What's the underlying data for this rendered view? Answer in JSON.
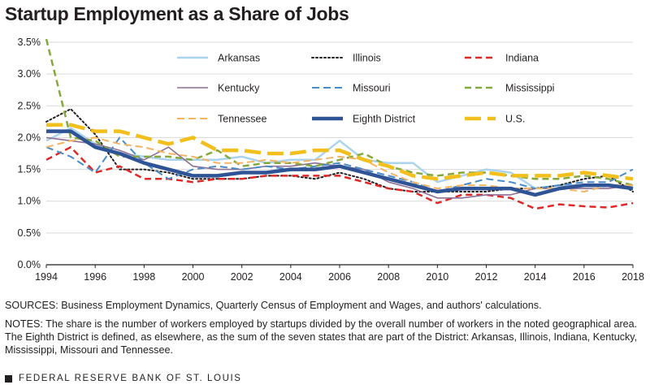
{
  "title": "Startup Employment as a Share of Jobs",
  "sources": "SOURCES: Business Employment Dynamics, Quarterly Census of Employment and Wages, and authors' calculations.",
  "notes": "NOTES: The share is the number of workers employed by startups divided by the overall number of workers in the noted geographical area. The Eighth District is defined, as elsewhere, as the sum of the seven states that are part of the District: Arkansas, Illinois, Indiana, Kentucky, Mississippi, Missouri and Tennessee.",
  "footer": "FEDERAL RESERVE BANK OF ST. LOUIS",
  "chart_data": {
    "type": "line",
    "title": "Startup Employment as a Share of Jobs",
    "xlabel": "",
    "ylabel": "",
    "xlim": [
      1994,
      2018
    ],
    "ylim": [
      0,
      3.5
    ],
    "x_ticks": [
      1994,
      1996,
      1998,
      2000,
      2002,
      2004,
      2006,
      2008,
      2010,
      2012,
      2014,
      2016,
      2018
    ],
    "y_ticks": [
      0,
      0.5,
      1.0,
      1.5,
      2.0,
      2.5,
      3.0,
      3.5
    ],
    "y_tick_labels": [
      "0.0%",
      "0.5%",
      "1.0%",
      "1.5%",
      "2.0%",
      "2.5%",
      "3.0%",
      "3.5%"
    ],
    "grid": "horizontal",
    "legend_position": "top",
    "x": [
      1994,
      1995,
      1996,
      1997,
      1998,
      1999,
      2000,
      2001,
      2002,
      2003,
      2004,
      2005,
      2006,
      2007,
      2008,
      2009,
      2010,
      2011,
      2012,
      2013,
      2014,
      2015,
      2016,
      2017,
      2018
    ],
    "series": [
      {
        "name": "Arkansas",
        "color": "#a9d3ef",
        "style": "solid",
        "width": 2.5,
        "values": [
          1.95,
          2.15,
          1.9,
          1.75,
          1.7,
          1.65,
          1.65,
          1.65,
          1.7,
          1.6,
          1.65,
          1.65,
          1.95,
          1.65,
          1.6,
          1.6,
          1.3,
          1.4,
          1.5,
          1.45,
          1.2,
          1.25,
          1.25,
          1.25,
          1.25
        ]
      },
      {
        "name": "Illinois",
        "color": "#231f20",
        "style": "dotted",
        "width": 2,
        "values": [
          2.25,
          2.45,
          2.05,
          1.5,
          1.5,
          1.45,
          1.35,
          1.35,
          1.35,
          1.4,
          1.4,
          1.35,
          1.45,
          1.35,
          1.2,
          1.15,
          1.15,
          1.15,
          1.15,
          1.2,
          1.2,
          1.25,
          1.35,
          1.4,
          1.15
        ]
      },
      {
        "name": "Indiana",
        "color": "#e02826",
        "style": "dashed",
        "width": 2.5,
        "values": [
          1.65,
          1.85,
          1.45,
          1.55,
          1.35,
          1.35,
          1.3,
          1.35,
          1.35,
          1.4,
          1.4,
          1.4,
          1.4,
          1.3,
          1.2,
          1.15,
          0.97,
          1.1,
          1.1,
          1.05,
          0.88,
          0.95,
          0.92,
          0.9,
          0.97
        ]
      },
      {
        "name": "Kentucky",
        "color": "#8e6f95",
        "style": "solid",
        "width": 1.6,
        "values": [
          2.0,
          1.95,
          1.9,
          1.8,
          1.65,
          1.85,
          1.55,
          1.5,
          1.5,
          1.55,
          1.55,
          1.6,
          1.55,
          1.5,
          1.3,
          1.2,
          1.05,
          1.05,
          1.1,
          1.1,
          1.2,
          1.2,
          1.2,
          1.2,
          1.25
        ]
      },
      {
        "name": "Missouri",
        "color": "#4a8cc7",
        "style": "dashed",
        "width": 2,
        "values": [
          1.85,
          1.7,
          1.45,
          2.0,
          1.6,
          1.35,
          1.5,
          1.55,
          1.5,
          1.55,
          1.5,
          1.55,
          1.6,
          1.5,
          1.4,
          1.3,
          1.15,
          1.25,
          1.35,
          1.3,
          1.2,
          1.25,
          1.3,
          1.3,
          1.5
        ]
      },
      {
        "name": "Mississippi",
        "color": "#86a93e",
        "style": "dashed",
        "width": 2.5,
        "values": [
          3.55,
          2.0,
          1.95,
          1.7,
          1.7,
          1.7,
          1.65,
          1.8,
          1.55,
          1.6,
          1.6,
          1.55,
          1.65,
          1.75,
          1.55,
          1.45,
          1.4,
          1.45,
          1.45,
          1.4,
          1.35,
          1.35,
          1.4,
          1.35,
          1.25
        ]
      },
      {
        "name": "Tennessee",
        "color": "#f4b466",
        "style": "dashed",
        "width": 2,
        "values": [
          1.85,
          1.95,
          2.0,
          1.9,
          1.85,
          1.75,
          1.7,
          1.6,
          1.6,
          1.65,
          1.6,
          1.65,
          1.7,
          1.65,
          1.45,
          1.3,
          1.2,
          1.25,
          1.25,
          1.2,
          1.2,
          1.2,
          1.15,
          1.25,
          1.25
        ]
      },
      {
        "name": "Eighth District",
        "color": "#2f5496",
        "style": "solid",
        "width": 4.5,
        "values": [
          2.1,
          2.1,
          1.85,
          1.75,
          1.6,
          1.5,
          1.4,
          1.4,
          1.45,
          1.45,
          1.5,
          1.5,
          1.55,
          1.45,
          1.35,
          1.25,
          1.15,
          1.2,
          1.2,
          1.2,
          1.1,
          1.2,
          1.25,
          1.25,
          1.2
        ]
      },
      {
        "name": "U.S.",
        "color": "#f2bf1d",
        "style": "longdash",
        "width": 4.5,
        "values": [
          2.2,
          2.2,
          2.1,
          2.1,
          2.0,
          1.9,
          2.0,
          1.8,
          1.8,
          1.75,
          1.75,
          1.8,
          1.8,
          1.65,
          1.55,
          1.4,
          1.35,
          1.4,
          1.45,
          1.4,
          1.4,
          1.4,
          1.45,
          1.4,
          1.35
        ]
      }
    ]
  }
}
